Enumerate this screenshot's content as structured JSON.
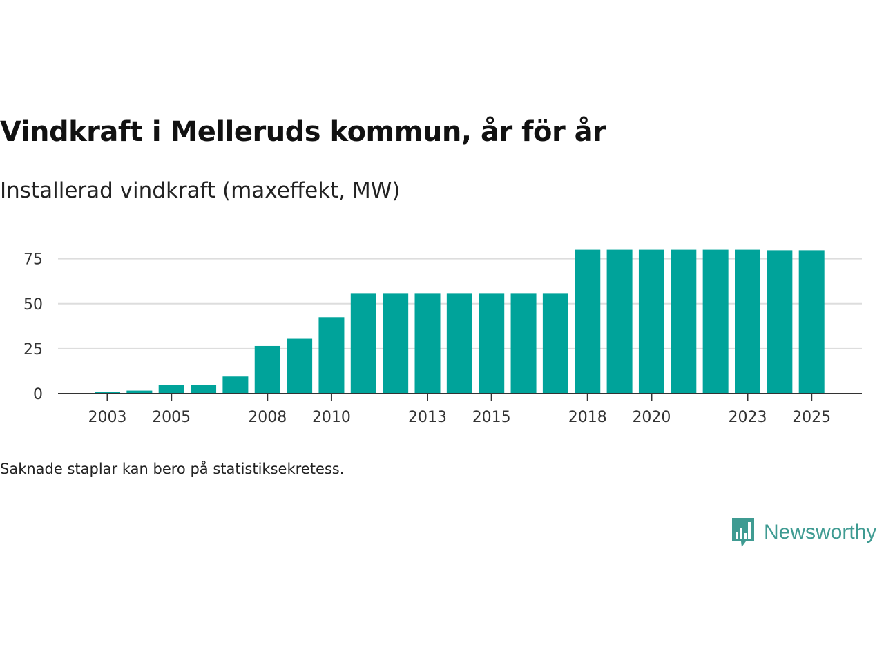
{
  "chart_data": {
    "type": "bar",
    "title": "Vindkraft i Melleruds kommun, år för år",
    "subtitle": "Installerad vindkraft (maxeffekt, MW)",
    "xlabel": "",
    "ylabel": "",
    "categories": [
      "2003",
      "2004",
      "2005",
      "2006",
      "2007",
      "2008",
      "2009",
      "2010",
      "2011",
      "2012",
      "2013",
      "2014",
      "2015",
      "2016",
      "2017",
      "2018",
      "2019",
      "2020",
      "2021",
      "2022",
      "2023",
      "2024",
      "2025"
    ],
    "values": [
      0.8,
      1.7,
      4.9,
      4.9,
      9.5,
      26.5,
      30.5,
      42.5,
      55.9,
      55.9,
      55.9,
      55.9,
      55.9,
      55.9,
      55.9,
      80.0,
      80.0,
      80.0,
      80.0,
      80.0,
      80.0,
      79.7,
      79.7
    ],
    "x_tick_labels": [
      "2003",
      "2005",
      "2008",
      "2010",
      "2013",
      "2015",
      "2018",
      "2020",
      "2023",
      "2025"
    ],
    "y_ticks": [
      "0",
      "25",
      "50",
      "75"
    ],
    "ylim": [
      0,
      80
    ],
    "grid": true,
    "bar_color": "#00a39a",
    "note": "Saknade staplar kan bero på statistiksekretess."
  },
  "brand": {
    "name": "Newsworthy",
    "color": "#3f9b92"
  }
}
